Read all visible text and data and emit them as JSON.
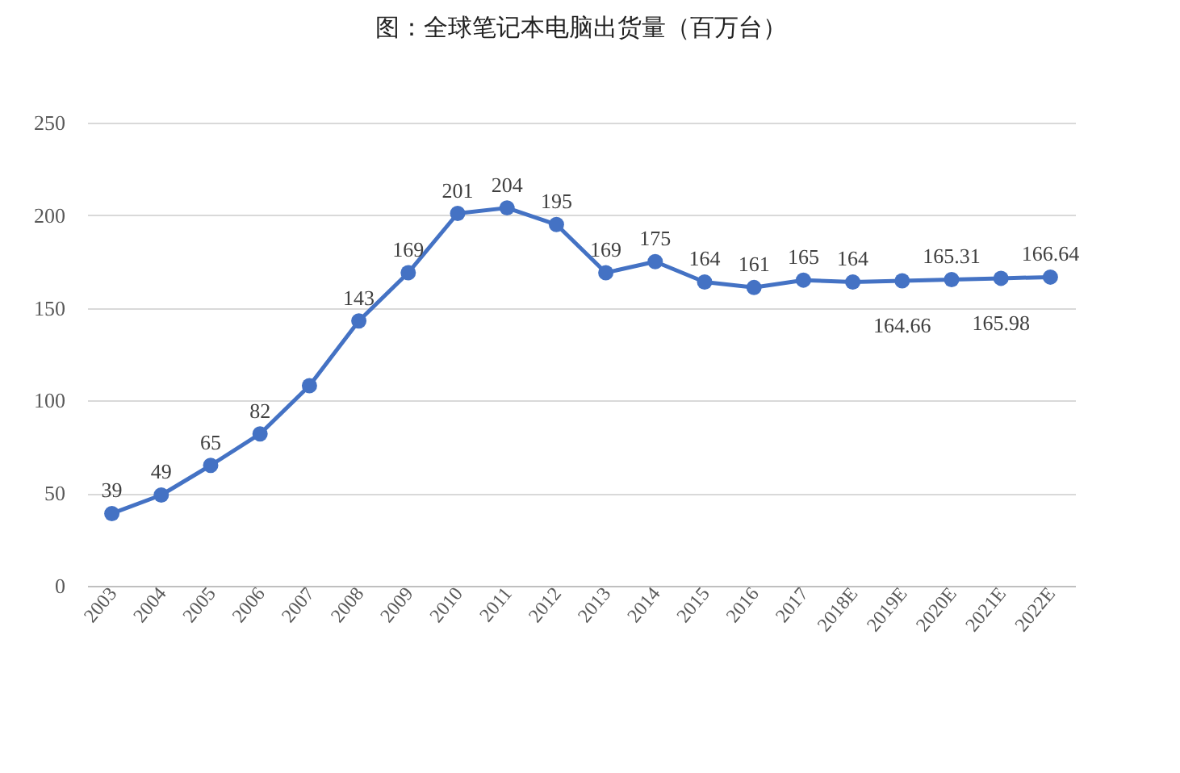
{
  "chart_data": {
    "type": "line",
    "title": "图：全球笔记本电脑出货量（百万台）",
    "categories": [
      "2003",
      "2004",
      "2005",
      "2006",
      "2007",
      "2008",
      "2009",
      "2010",
      "2011",
      "2012",
      "2013",
      "2014",
      "2015",
      "2016",
      "2017",
      "2018E",
      "2019E",
      "2020E",
      "2021E",
      "2022E"
    ],
    "series": [
      {
        "color": "#4472c4",
        "values": [
          39,
          49,
          65,
          82,
          108,
          143,
          169,
          201,
          204,
          195,
          169,
          175,
          164,
          161,
          165,
          164,
          164.66,
          165.31,
          165.98,
          166.64
        ]
      }
    ],
    "value_labels": [
      "39",
      "49",
      "65",
      "82",
      null,
      "143",
      "169",
      "201",
      "204",
      "195",
      "169",
      "175",
      "164",
      "161",
      "165",
      "164",
      "164.66",
      "165.31",
      "165.98",
      "166.64"
    ],
    "ylim": [
      0,
      250
    ],
    "yticks": [
      0,
      50,
      100,
      150,
      200,
      250
    ],
    "grid": "y",
    "legend": false,
    "marker": "circle",
    "line_style": "solid"
  }
}
